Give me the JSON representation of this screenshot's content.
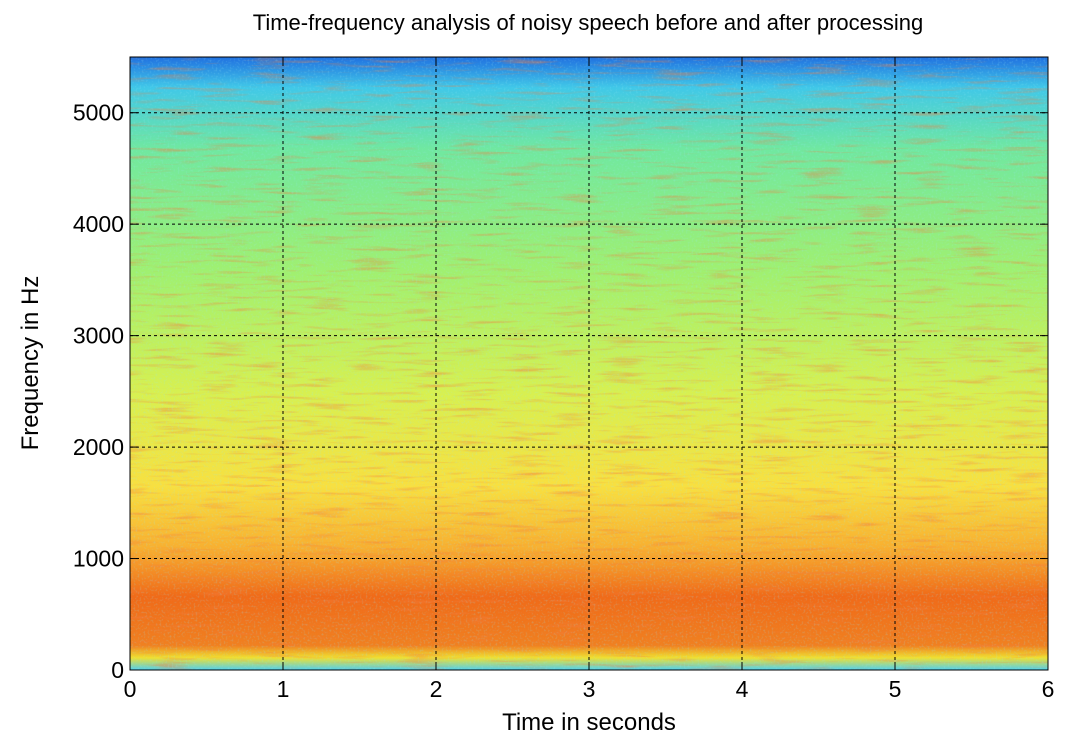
{
  "chart_data": {
    "type": "spectrogram",
    "title": "Time-frequency analysis of noisy speech before and after processing",
    "x_label": "Time in seconds",
    "y_label": "Frequency in Hz",
    "xlim": [
      0,
      6
    ],
    "xticks": [
      0,
      1,
      2,
      3,
      4,
      5,
      6
    ],
    "ylim": [
      0,
      5500
    ],
    "yticks": [
      0,
      1000,
      2000,
      3000,
      4000,
      5000
    ],
    "grid": true
  }
}
